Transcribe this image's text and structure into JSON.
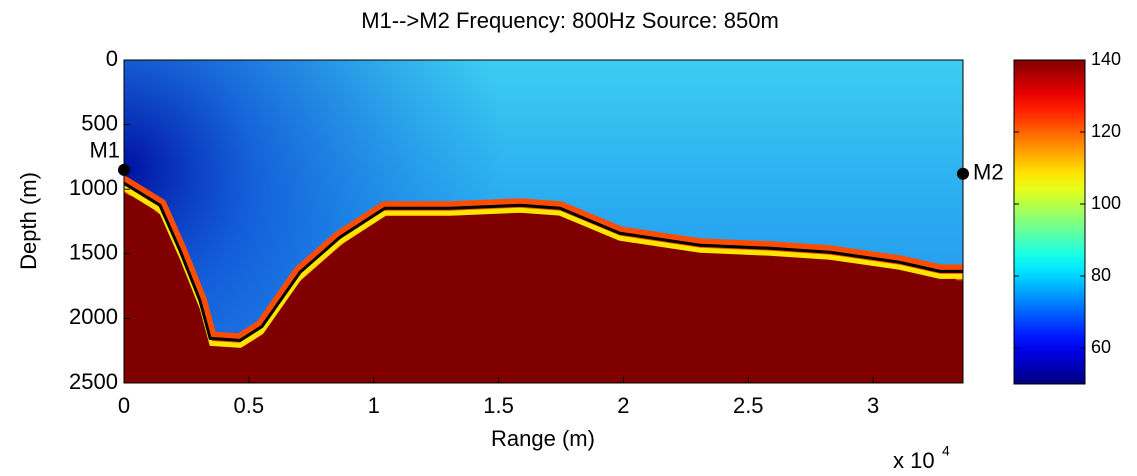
{
  "chart_data": {
    "type": "heatmap",
    "title": "M1-->M2   Frequency:  800Hz    Source:  850m",
    "xlabel": "Range (m)",
    "ylabel": "Depth (m)",
    "x_multiplier": "x 10",
    "x_multiplier_exponent": "4",
    "xlim": [
      0,
      3.36
    ],
    "xticks": [
      0,
      0.5,
      1,
      1.5,
      2,
      2.5,
      3
    ],
    "ylim": [
      0,
      2500
    ],
    "yticks": [
      0,
      500,
      1000,
      1500,
      2000,
      2500
    ],
    "y_reversed": true,
    "colormap": "jet",
    "clim": [
      50,
      140
    ],
    "cticks": [
      60,
      80,
      100,
      120,
      140
    ],
    "bathymetry": {
      "x": [
        0,
        0.144,
        0.224,
        0.304,
        0.345,
        0.465,
        0.553,
        0.705,
        0.865,
        1.045,
        1.306,
        1.586,
        1.746,
        1.986,
        2.307,
        2.587,
        2.827,
        3.107,
        3.268,
        3.36
      ],
      "depth": [
        953,
        1124,
        1473,
        1860,
        2155,
        2170,
        2062,
        1643,
        1372,
        1147,
        1147,
        1124,
        1147,
        1341,
        1434,
        1457,
        1488,
        1566,
        1636,
        1636
      ],
      "color": "#000000"
    },
    "markers": [
      {
        "label": "M1",
        "x": 0,
        "y": 850
      },
      {
        "label": "M2",
        "x": 3.36,
        "y": 880
      }
    ]
  }
}
